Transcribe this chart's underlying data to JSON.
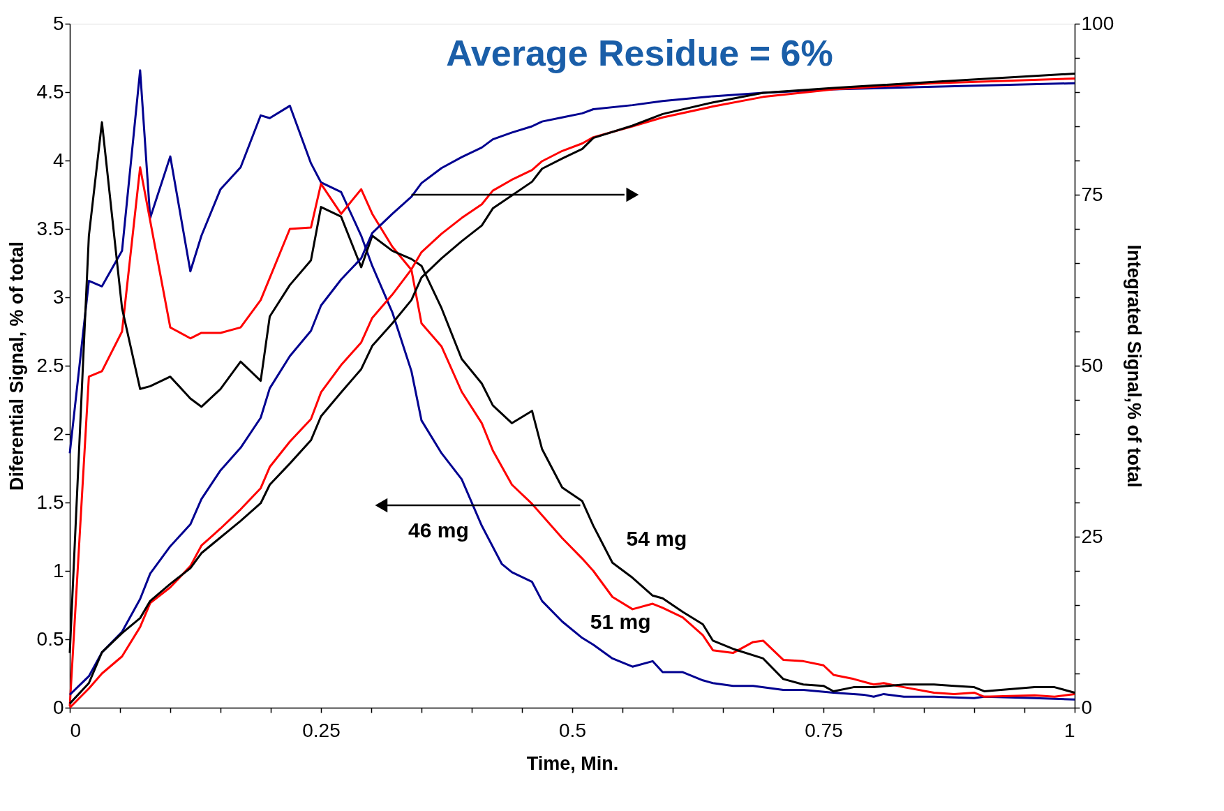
{
  "chart_data": {
    "type": "line",
    "title": "Average Residue  = 6%",
    "xlabel": "Time, Min.",
    "ylabel": "Diferential Signal, % of total",
    "y2label": "Integrated Signal,% of total",
    "xlim": [
      0,
      1
    ],
    "ylim": [
      0,
      5
    ],
    "y2lim": [
      0,
      100
    ],
    "xticks": [
      0,
      {
        "value": 0.05,
        "label": null
      },
      {
        "value": 0.1,
        "label": null
      },
      {
        "value": 0.15,
        "label": null
      },
      {
        "value": 0.2,
        "label": null
      },
      0.25,
      {
        "value": 0.3,
        "label": null
      },
      {
        "value": 0.35,
        "label": null
      },
      {
        "value": 0.4,
        "label": null
      },
      {
        "value": 0.45,
        "label": null
      },
      0.5,
      {
        "value": 0.55,
        "label": null
      },
      {
        "value": 0.6,
        "label": null
      },
      {
        "value": 0.65,
        "label": null
      },
      {
        "value": 0.7,
        "label": null
      },
      0.75,
      {
        "value": 0.8,
        "label": null
      },
      {
        "value": 0.85,
        "label": null
      },
      {
        "value": 0.9,
        "label": null
      },
      {
        "value": 0.95,
        "label": null
      },
      1
    ],
    "yticks": [
      0,
      0.5,
      1,
      1.5,
      2,
      2.5,
      3,
      3.5,
      4,
      4.5,
      5
    ],
    "y2ticks": [
      0,
      {
        "value": 5,
        "label": null
      },
      {
        "value": 10,
        "label": null
      },
      {
        "value": 15,
        "label": null
      },
      {
        "value": 20,
        "label": null
      },
      25,
      {
        "value": 30,
        "label": null
      },
      {
        "value": 35,
        "label": null
      },
      {
        "value": 40,
        "label": null
      },
      {
        "value": 45,
        "label": null
      },
      50,
      {
        "value": 55,
        "label": null
      },
      {
        "value": 60,
        "label": null
      },
      {
        "value": 65,
        "label": null
      },
      {
        "value": 70,
        "label": null
      },
      75,
      {
        "value": 80,
        "label": null
      },
      {
        "value": 85,
        "label": null
      },
      {
        "value": 90,
        "label": null
      },
      {
        "value": 95,
        "label": null
      },
      100
    ],
    "grid": false,
    "marker": "none",
    "line_style": "solid",
    "annotations": [
      {
        "text": "46 mg",
        "x": 0.31,
        "y": 1.48
      },
      "54 mg",
      "51 mg"
    ],
    "series": [
      {
        "color": "#000090",
        "x": [
          0,
          0.019,
          0.032,
          0.052,
          0.07,
          0.08,
          0.1,
          0.12,
          0.131,
          0.15,
          0.17,
          0.19,
          0.199,
          0.219,
          0.24,
          0.25,
          0.27,
          0.29,
          0.301,
          0.321,
          0.34,
          0.35,
          0.37,
          0.39,
          0.41,
          0.43,
          0.44,
          0.46,
          0.47,
          0.49,
          0.51,
          0.521,
          0.54,
          0.56,
          0.58,
          0.59,
          0.61,
          0.63,
          0.64,
          0.66,
          0.68,
          0.71,
          0.73,
          0.76,
          0.79,
          0.8,
          0.81,
          0.83,
          0.86,
          0.9,
          0.91,
          0.96,
          1.0
        ],
        "values": [
          1.86,
          3.12,
          3.08,
          3.34,
          4.66,
          3.58,
          4.03,
          3.19,
          3.45,
          3.79,
          3.95,
          4.33,
          4.31,
          4.4,
          3.98,
          3.84,
          3.77,
          3.45,
          3.23,
          2.89,
          2.46,
          2.1,
          1.86,
          1.67,
          1.33,
          1.05,
          0.99,
          0.92,
          0.78,
          0.63,
          0.51,
          0.46,
          0.36,
          0.3,
          0.34,
          0.26,
          0.26,
          0.2,
          0.18,
          0.16,
          0.16,
          0.13,
          0.13,
          0.11,
          0.095,
          0.08,
          0.1,
          0.08,
          0.08,
          0.07,
          0.08,
          0.07,
          0.06
        ]
      },
      {
        "color": "#ff0000",
        "x": [
          0,
          0.019,
          0.032,
          0.052,
          0.07,
          0.1,
          0.12,
          0.131,
          0.15,
          0.17,
          0.19,
          0.219,
          0.24,
          0.25,
          0.27,
          0.29,
          0.301,
          0.321,
          0.34,
          0.35,
          0.37,
          0.39,
          0.41,
          0.421,
          0.44,
          0.46,
          0.49,
          0.51,
          0.521,
          0.54,
          0.56,
          0.58,
          0.59,
          0.61,
          0.63,
          0.64,
          0.66,
          0.68,
          0.69,
          0.71,
          0.73,
          0.75,
          0.76,
          0.78,
          0.8,
          0.81,
          0.83,
          0.86,
          0.88,
          0.9,
          0.91,
          0.96,
          0.98,
          1.0
        ],
        "values": [
          0.01,
          2.42,
          2.46,
          2.75,
          3.95,
          2.78,
          2.7,
          2.74,
          2.74,
          2.78,
          2.98,
          3.5,
          3.51,
          3.83,
          3.61,
          3.79,
          3.61,
          3.37,
          3.2,
          2.81,
          2.64,
          2.31,
          2.08,
          1.88,
          1.63,
          1.49,
          1.24,
          1.09,
          1.0,
          0.81,
          0.72,
          0.76,
          0.73,
          0.66,
          0.53,
          0.42,
          0.4,
          0.48,
          0.49,
          0.35,
          0.34,
          0.31,
          0.24,
          0.21,
          0.17,
          0.18,
          0.15,
          0.11,
          0.1,
          0.11,
          0.08,
          0.09,
          0.08,
          0.1
        ]
      },
      {
        "color": "#000000",
        "x": [
          0,
          0.019,
          0.032,
          0.052,
          0.07,
          0.08,
          0.1,
          0.12,
          0.131,
          0.15,
          0.17,
          0.19,
          0.199,
          0.219,
          0.24,
          0.25,
          0.27,
          0.29,
          0.301,
          0.321,
          0.34,
          0.35,
          0.37,
          0.39,
          0.41,
          0.421,
          0.44,
          0.46,
          0.47,
          0.49,
          0.51,
          0.521,
          0.54,
          0.56,
          0.58,
          0.59,
          0.61,
          0.63,
          0.64,
          0.66,
          0.69,
          0.71,
          0.73,
          0.75,
          0.76,
          0.78,
          0.8,
          0.83,
          0.86,
          0.88,
          0.9,
          0.91,
          0.96,
          0.98,
          1.0
        ],
        "values": [
          0.4,
          3.45,
          4.28,
          2.92,
          2.33,
          2.35,
          2.42,
          2.26,
          2.2,
          2.33,
          2.53,
          2.39,
          2.86,
          3.09,
          3.27,
          3.66,
          3.59,
          3.22,
          3.45,
          3.34,
          3.28,
          3.23,
          2.92,
          2.55,
          2.37,
          2.21,
          2.08,
          2.17,
          1.89,
          1.61,
          1.51,
          1.33,
          1.06,
          0.95,
          0.82,
          0.8,
          0.7,
          0.61,
          0.49,
          0.43,
          0.36,
          0.21,
          0.17,
          0.16,
          0.12,
          0.15,
          0.15,
          0.17,
          0.17,
          0.16,
          0.15,
          0.12,
          0.15,
          0.15,
          0.11
        ]
      },
      {
        "color": "#000090",
        "axis": "y2",
        "x": [
          0,
          0.019,
          0.032,
          0.052,
          0.07,
          0.08,
          0.1,
          0.12,
          0.131,
          0.15,
          0.17,
          0.19,
          0.199,
          0.219,
          0.24,
          0.25,
          0.27,
          0.29,
          0.301,
          0.321,
          0.34,
          0.35,
          0.37,
          0.39,
          0.41,
          0.421,
          0.44,
          0.46,
          0.47,
          0.49,
          0.51,
          0.521,
          0.56,
          0.59,
          0.64,
          0.69,
          0.76,
          0.86,
          1.0
        ],
        "values": [
          1.9,
          4.6,
          8.1,
          11.1,
          15.9,
          19.6,
          23.6,
          26.8,
          30.5,
          34.7,
          38.0,
          42.4,
          46.7,
          51.4,
          55.1,
          58.8,
          62.6,
          65.7,
          69.4,
          72.2,
          74.7,
          76.7,
          78.9,
          80.5,
          81.9,
          83.1,
          84.1,
          85.0,
          85.7,
          86.3,
          86.9,
          87.5,
          88.1,
          88.7,
          89.4,
          89.9,
          90.4,
          90.8,
          91.3
        ]
      },
      {
        "color": "#ff0000",
        "axis": "y2",
        "x": [
          0,
          0.019,
          0.032,
          0.052,
          0.07,
          0.08,
          0.1,
          0.12,
          0.131,
          0.15,
          0.17,
          0.19,
          0.199,
          0.219,
          0.24,
          0.25,
          0.27,
          0.29,
          0.301,
          0.321,
          0.34,
          0.35,
          0.37,
          0.39,
          0.41,
          0.421,
          0.44,
          0.46,
          0.47,
          0.49,
          0.51,
          0.521,
          0.56,
          0.59,
          0.64,
          0.69,
          0.76,
          0.86,
          1.0
        ],
        "values": [
          0,
          2.8,
          5.0,
          7.5,
          11.8,
          15.3,
          17.6,
          20.7,
          23.7,
          26.2,
          29.0,
          32.1,
          35.2,
          38.9,
          42.2,
          46.1,
          50.1,
          53.4,
          57.0,
          60.4,
          64.1,
          66.6,
          69.3,
          71.6,
          73.6,
          75.6,
          77.2,
          78.6,
          79.9,
          81.4,
          82.5,
          83.4,
          85.0,
          86.3,
          87.9,
          89.3,
          90.4,
          91.3,
          92.0
        ]
      },
      {
        "color": "#000000",
        "axis": "y2",
        "x": [
          0,
          0.019,
          0.032,
          0.052,
          0.07,
          0.08,
          0.1,
          0.12,
          0.131,
          0.15,
          0.17,
          0.19,
          0.199,
          0.219,
          0.24,
          0.25,
          0.27,
          0.29,
          0.301,
          0.321,
          0.34,
          0.35,
          0.37,
          0.39,
          0.41,
          0.421,
          0.44,
          0.46,
          0.47,
          0.49,
          0.51,
          0.521,
          0.56,
          0.59,
          0.64,
          0.69,
          0.76,
          0.86,
          1.0
        ],
        "values": [
          0.6,
          3.6,
          8.1,
          10.9,
          13.1,
          15.6,
          18.1,
          20.4,
          22.6,
          24.9,
          27.3,
          29.9,
          32.6,
          35.7,
          39.1,
          42.6,
          46.1,
          49.5,
          52.9,
          56.2,
          59.6,
          62.9,
          65.7,
          68.2,
          70.5,
          73.0,
          74.9,
          76.9,
          78.8,
          80.3,
          81.7,
          83.3,
          85.1,
          86.8,
          88.5,
          89.9,
          90.6,
          91.5,
          92.7
        ]
      }
    ]
  }
}
